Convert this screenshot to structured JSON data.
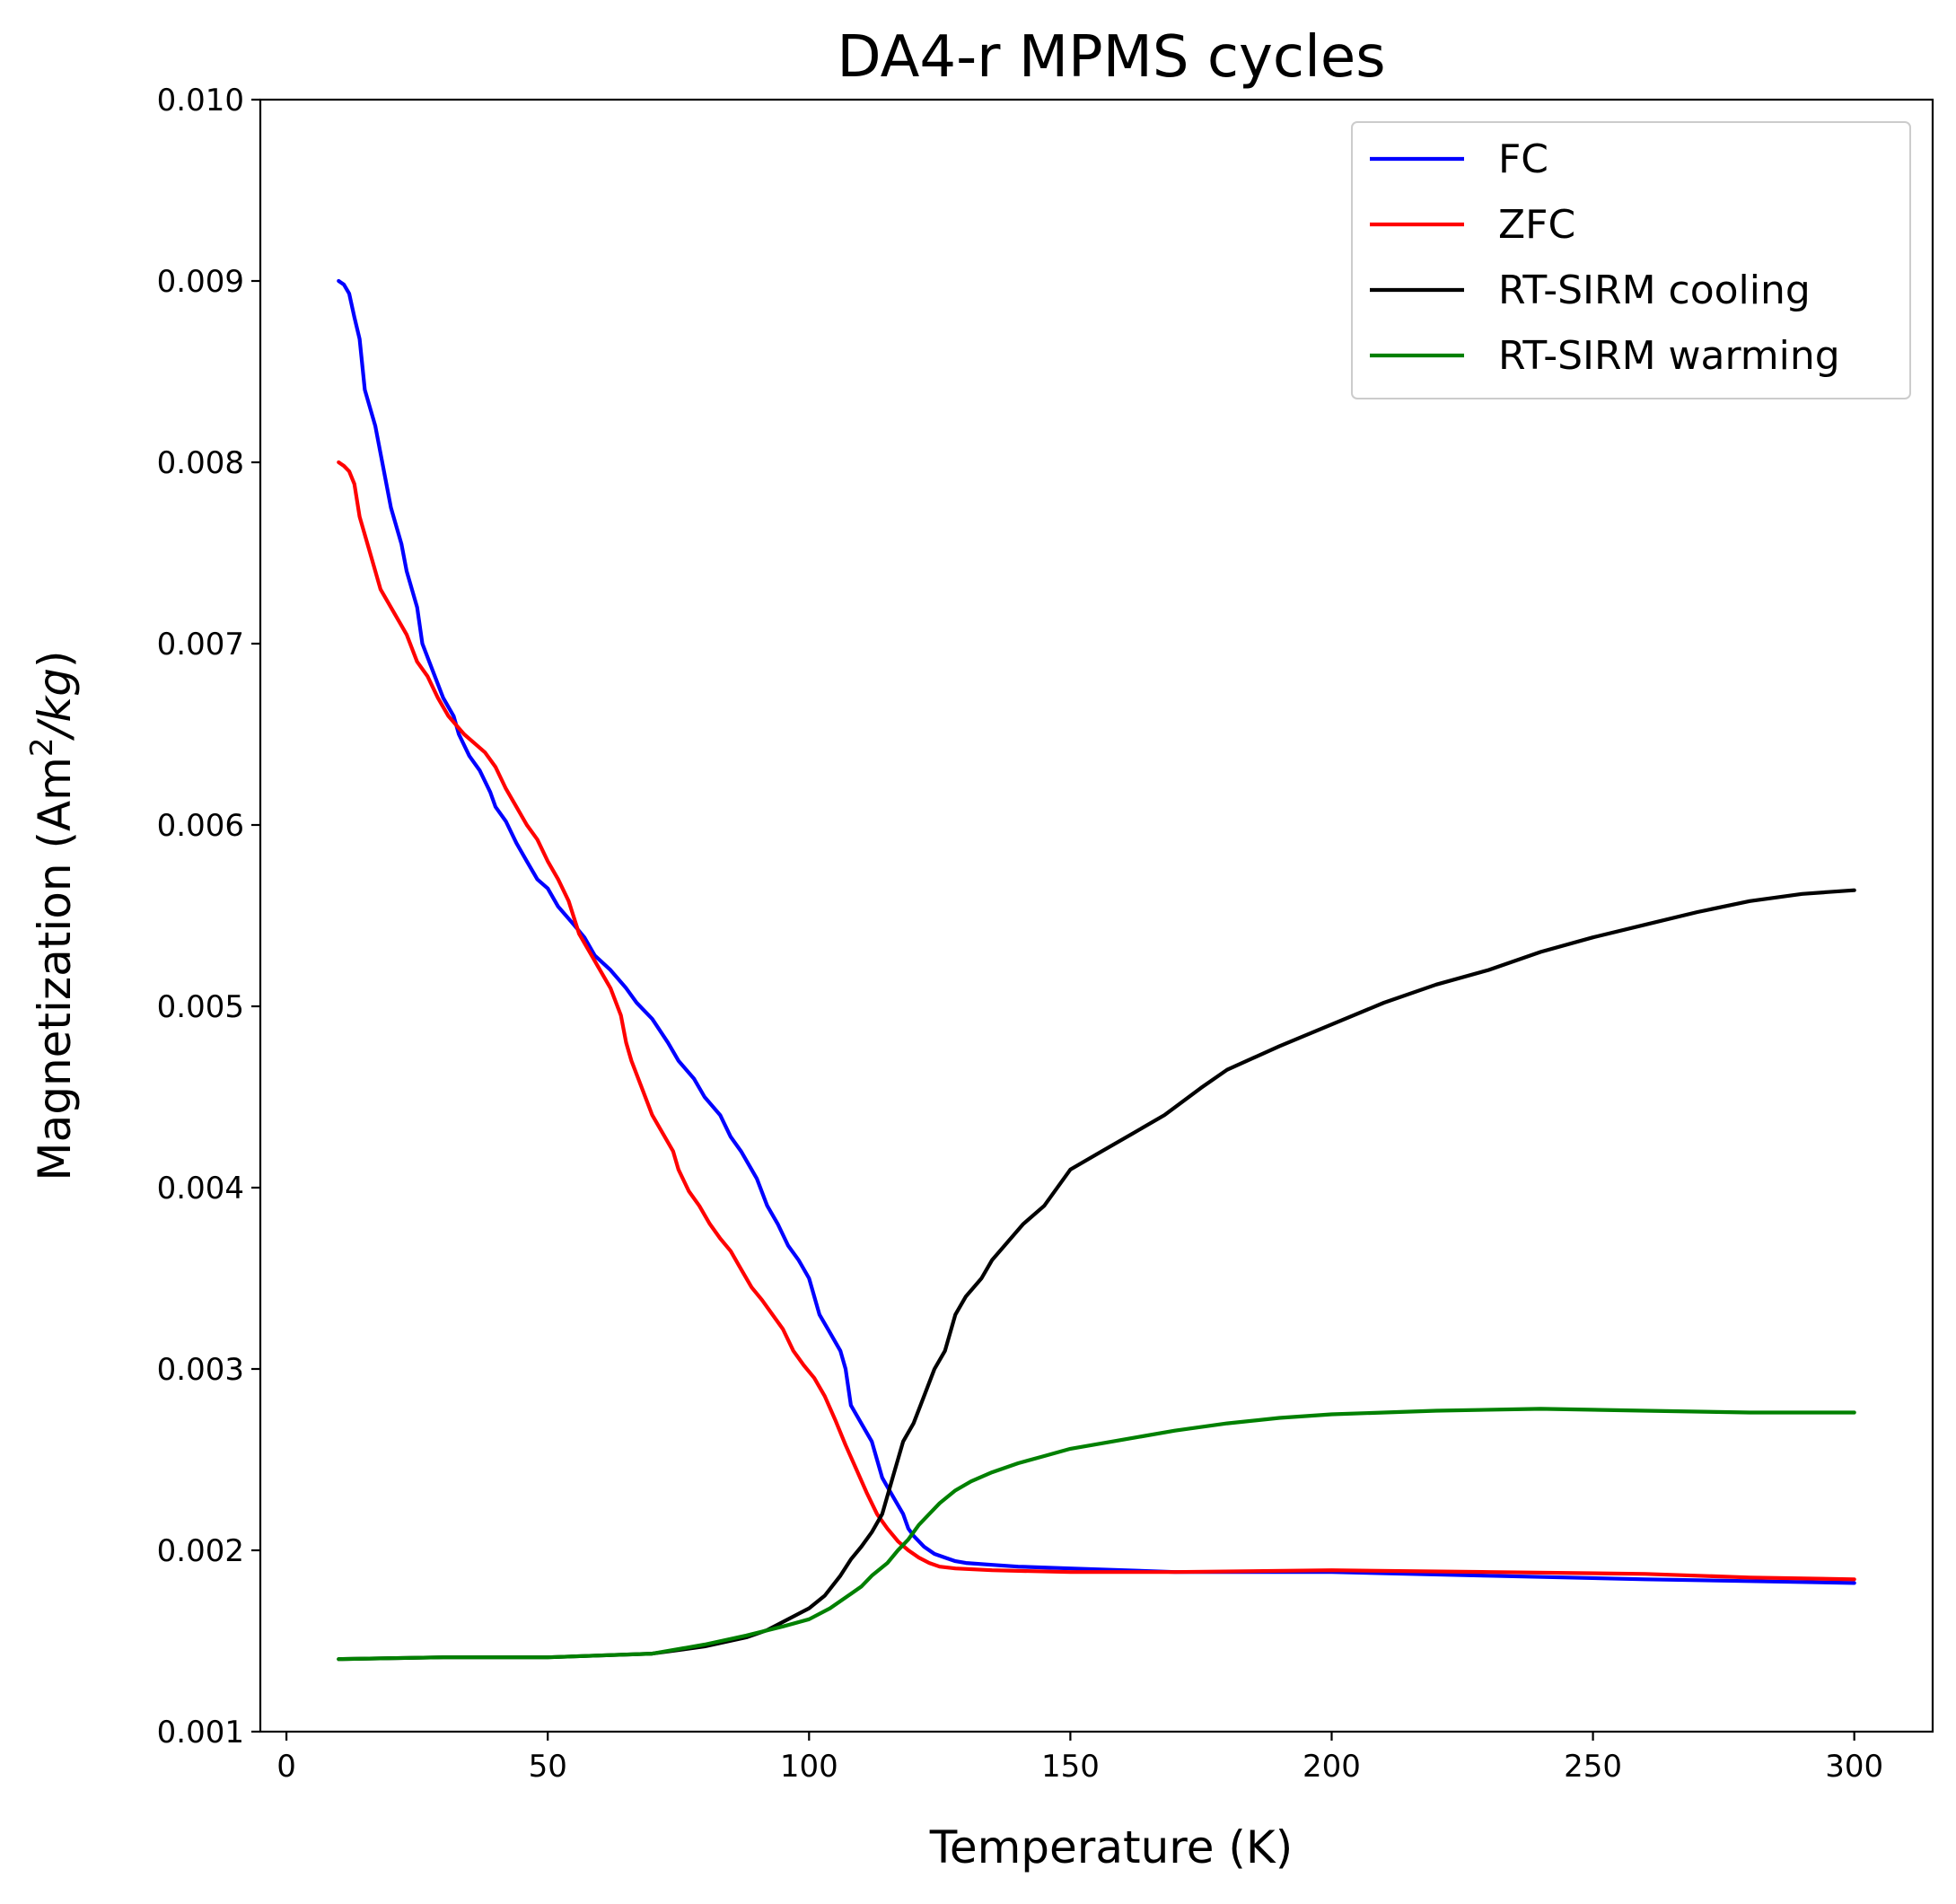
{
  "chart_data": {
    "type": "line",
    "title": "DA4-r MPMS cycles",
    "xlabel": "Temperature (K)",
    "ylabel_main": "Magnetization (Am",
    "ylabel_sup": "2",
    "ylabel_tail": "/kg",
    "ylabel_close": ")",
    "xlim": [
      -5,
      315
    ],
    "ylim": [
      0.001,
      0.01
    ],
    "x_ticks": [
      0,
      50,
      100,
      150,
      200,
      250,
      300
    ],
    "x_tick_labels": [
      "0",
      "50",
      "100",
      "150",
      "200",
      "250",
      "300"
    ],
    "y_ticks": [
      0.001,
      0.002,
      0.003,
      0.004,
      0.005,
      0.006,
      0.007,
      0.008,
      0.009,
      0.01
    ],
    "y_tick_labels": [
      "0.001",
      "0.002",
      "0.003",
      "0.004",
      "0.005",
      "0.006",
      "0.007",
      "0.008",
      "0.009",
      "0.010"
    ],
    "grid": false,
    "legend_position": "top-right",
    "series": [
      {
        "name": "FC",
        "color": "#0000ff",
        "points": [
          [
            10,
            0.009
          ],
          [
            11,
            0.00898
          ],
          [
            12,
            0.00893
          ],
          [
            13,
            0.0088
          ],
          [
            14,
            0.00868
          ],
          [
            15,
            0.0084
          ],
          [
            17,
            0.0082
          ],
          [
            19,
            0.0079
          ],
          [
            20,
            0.00775
          ],
          [
            22,
            0.00755
          ],
          [
            23,
            0.0074
          ],
          [
            25,
            0.0072
          ],
          [
            26,
            0.007
          ],
          [
            28,
            0.00685
          ],
          [
            30,
            0.0067
          ],
          [
            32,
            0.0066
          ],
          [
            33,
            0.0065
          ],
          [
            35,
            0.00638
          ],
          [
            37,
            0.0063
          ],
          [
            39,
            0.00618
          ],
          [
            40,
            0.0061
          ],
          [
            42,
            0.00602
          ],
          [
            44,
            0.0059
          ],
          [
            46,
            0.0058
          ],
          [
            48,
            0.0057
          ],
          [
            50,
            0.00565
          ],
          [
            52,
            0.00555
          ],
          [
            55,
            0.00545
          ],
          [
            57,
            0.00538
          ],
          [
            59,
            0.00528
          ],
          [
            62,
            0.0052
          ],
          [
            65,
            0.0051
          ],
          [
            67,
            0.00502
          ],
          [
            70,
            0.00493
          ],
          [
            73,
            0.0048
          ],
          [
            75,
            0.0047
          ],
          [
            78,
            0.0046
          ],
          [
            80,
            0.0045
          ],
          [
            83,
            0.0044
          ],
          [
            85,
            0.00428
          ],
          [
            87,
            0.0042
          ],
          [
            90,
            0.00405
          ],
          [
            92,
            0.0039
          ],
          [
            94,
            0.0038
          ],
          [
            96,
            0.00368
          ],
          [
            98,
            0.0036
          ],
          [
            100,
            0.0035
          ],
          [
            102,
            0.0033
          ],
          [
            104,
            0.0032
          ],
          [
            106,
            0.0031
          ],
          [
            107,
            0.003
          ],
          [
            108,
            0.0028
          ],
          [
            110,
            0.0027
          ],
          [
            112,
            0.0026
          ],
          [
            113,
            0.0025
          ],
          [
            114,
            0.0024
          ],
          [
            116,
            0.0023
          ],
          [
            118,
            0.0022
          ],
          [
            119,
            0.00212
          ],
          [
            120,
            0.00208
          ],
          [
            122,
            0.00202
          ],
          [
            124,
            0.00198
          ],
          [
            126,
            0.00196
          ],
          [
            128,
            0.00194
          ],
          [
            130,
            0.00193
          ],
          [
            135,
            0.00192
          ],
          [
            140,
            0.00191
          ],
          [
            150,
            0.0019
          ],
          [
            170,
            0.00188
          ],
          [
            200,
            0.00188
          ],
          [
            230,
            0.00186
          ],
          [
            260,
            0.00184
          ],
          [
            280,
            0.00183
          ],
          [
            300,
            0.00182
          ]
        ]
      },
      {
        "name": "ZFC",
        "color": "#ff0000",
        "points": [
          [
            10,
            0.008
          ],
          [
            11,
            0.00798
          ],
          [
            12,
            0.00795
          ],
          [
            13,
            0.00788
          ],
          [
            14,
            0.0077
          ],
          [
            16,
            0.0075
          ],
          [
            18,
            0.0073
          ],
          [
            20,
            0.0072
          ],
          [
            22,
            0.0071
          ],
          [
            23,
            0.00705
          ],
          [
            25,
            0.0069
          ],
          [
            27,
            0.00682
          ],
          [
            29,
            0.0067
          ],
          [
            31,
            0.0066
          ],
          [
            34,
            0.0065
          ],
          [
            36,
            0.00645
          ],
          [
            38,
            0.0064
          ],
          [
            40,
            0.00632
          ],
          [
            42,
            0.0062
          ],
          [
            44,
            0.0061
          ],
          [
            46,
            0.006
          ],
          [
            48,
            0.00592
          ],
          [
            50,
            0.0058
          ],
          [
            52,
            0.0057
          ],
          [
            54,
            0.00558
          ],
          [
            56,
            0.0054
          ],
          [
            58,
            0.0053
          ],
          [
            60,
            0.0052
          ],
          [
            62,
            0.0051
          ],
          [
            64,
            0.00495
          ],
          [
            65,
            0.0048
          ],
          [
            66,
            0.0047
          ],
          [
            68,
            0.00455
          ],
          [
            70,
            0.0044
          ],
          [
            72,
            0.0043
          ],
          [
            74,
            0.0042
          ],
          [
            75,
            0.0041
          ],
          [
            77,
            0.00398
          ],
          [
            79,
            0.0039
          ],
          [
            81,
            0.0038
          ],
          [
            83,
            0.00372
          ],
          [
            85,
            0.00365
          ],
          [
            87,
            0.00355
          ],
          [
            89,
            0.00345
          ],
          [
            91,
            0.00338
          ],
          [
            93,
            0.0033
          ],
          [
            95,
            0.00322
          ],
          [
            97,
            0.0031
          ],
          [
            99,
            0.00302
          ],
          [
            101,
            0.00295
          ],
          [
            103,
            0.00285
          ],
          [
            105,
            0.00272
          ],
          [
            107,
            0.00258
          ],
          [
            109,
            0.00245
          ],
          [
            111,
            0.00232
          ],
          [
            113,
            0.0022
          ],
          [
            115,
            0.00212
          ],
          [
            117,
            0.00205
          ],
          [
            119,
            0.002
          ],
          [
            121,
            0.00196
          ],
          [
            123,
            0.00193
          ],
          [
            125,
            0.00191
          ],
          [
            128,
            0.0019
          ],
          [
            135,
            0.00189
          ],
          [
            150,
            0.00188
          ],
          [
            170,
            0.00188
          ],
          [
            200,
            0.00189
          ],
          [
            230,
            0.00188
          ],
          [
            260,
            0.00187
          ],
          [
            280,
            0.00185
          ],
          [
            300,
            0.00184
          ]
        ]
      },
      {
        "name": "RT-SIRM cooling",
        "color": "#000000",
        "points": [
          [
            10,
            0.0014
          ],
          [
            30,
            0.00141
          ],
          [
            50,
            0.00141
          ],
          [
            70,
            0.00143
          ],
          [
            80,
            0.00147
          ],
          [
            88,
            0.00152
          ],
          [
            92,
            0.00156
          ],
          [
            96,
            0.00162
          ],
          [
            100,
            0.00168
          ],
          [
            103,
            0.00175
          ],
          [
            106,
            0.00186
          ],
          [
            108,
            0.00195
          ],
          [
            110,
            0.00202
          ],
          [
            112,
            0.0021
          ],
          [
            114,
            0.0022
          ],
          [
            116,
            0.0024
          ],
          [
            118,
            0.0026
          ],
          [
            120,
            0.0027
          ],
          [
            122,
            0.00285
          ],
          [
            124,
            0.003
          ],
          [
            126,
            0.0031
          ],
          [
            128,
            0.0033
          ],
          [
            130,
            0.0034
          ],
          [
            133,
            0.0035
          ],
          [
            135,
            0.0036
          ],
          [
            138,
            0.0037
          ],
          [
            141,
            0.0038
          ],
          [
            145,
            0.0039
          ],
          [
            150,
            0.0041
          ],
          [
            156,
            0.0042
          ],
          [
            162,
            0.0043
          ],
          [
            168,
            0.0044
          ],
          [
            175,
            0.00455
          ],
          [
            180,
            0.00465
          ],
          [
            190,
            0.00478
          ],
          [
            200,
            0.0049
          ],
          [
            210,
            0.00502
          ],
          [
            220,
            0.00512
          ],
          [
            230,
            0.0052
          ],
          [
            240,
            0.0053
          ],
          [
            250,
            0.00538
          ],
          [
            260,
            0.00545
          ],
          [
            270,
            0.00552
          ],
          [
            280,
            0.00558
          ],
          [
            290,
            0.00562
          ],
          [
            295,
            0.00563
          ],
          [
            300,
            0.00564
          ]
        ]
      },
      {
        "name": "RT-SIRM warming",
        "color": "#008000",
        "points": [
          [
            10,
            0.0014
          ],
          [
            30,
            0.00141
          ],
          [
            50,
            0.00141
          ],
          [
            70,
            0.00143
          ],
          [
            80,
            0.00148
          ],
          [
            88,
            0.00153
          ],
          [
            95,
            0.00158
          ],
          [
            100,
            0.00162
          ],
          [
            104,
            0.00168
          ],
          [
            108,
            0.00176
          ],
          [
            110,
            0.0018
          ],
          [
            112,
            0.00186
          ],
          [
            115,
            0.00193
          ],
          [
            117,
            0.002
          ],
          [
            119,
            0.00206
          ],
          [
            121,
            0.00214
          ],
          [
            123,
            0.0022
          ],
          [
            125,
            0.00226
          ],
          [
            128,
            0.00233
          ],
          [
            131,
            0.00238
          ],
          [
            135,
            0.00243
          ],
          [
            140,
            0.00248
          ],
          [
            145,
            0.00252
          ],
          [
            150,
            0.00256
          ],
          [
            160,
            0.00261
          ],
          [
            170,
            0.00266
          ],
          [
            180,
            0.0027
          ],
          [
            190,
            0.00273
          ],
          [
            200,
            0.00275
          ],
          [
            220,
            0.00277
          ],
          [
            240,
            0.00278
          ],
          [
            260,
            0.00277
          ],
          [
            280,
            0.00276
          ],
          [
            300,
            0.00276
          ]
        ]
      }
    ]
  }
}
